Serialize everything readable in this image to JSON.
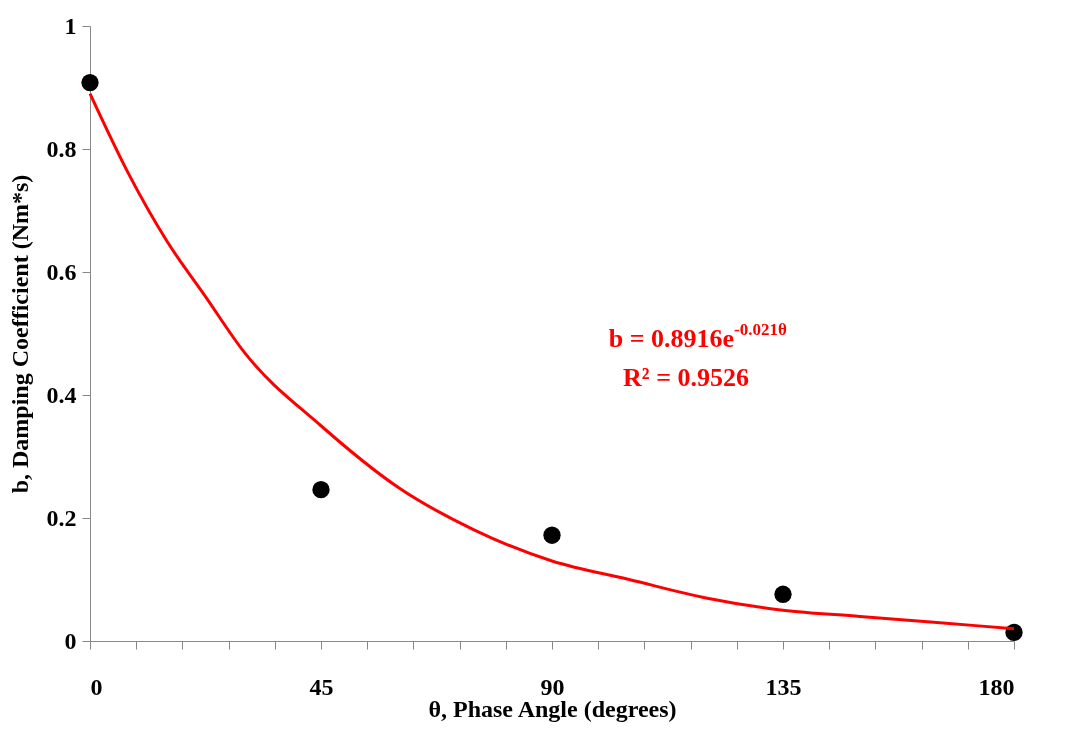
{
  "chart_data": {
    "type": "scatter",
    "xlabel": "θ, Phase Angle (degrees)",
    "ylabel": "b, Damping Coefficient (Nm*s)",
    "x": [
      0,
      45,
      90,
      135,
      180
    ],
    "series": [
      {
        "type": "scatter",
        "color": "#000000",
        "marker": "circle",
        "values": [
          0.908,
          0.246,
          0.172,
          0.076,
          0.014
        ]
      },
      {
        "type": "line",
        "color": "#ff0000",
        "line_style": "solid",
        "marker": "none",
        "x": [
          0,
          7.5,
          15,
          22.5,
          30,
          45,
          60,
          75,
          90,
          105,
          120,
          135,
          150,
          165,
          180
        ],
        "values": [
          0.89,
          0.76,
          0.65,
          0.56,
          0.47,
          0.35,
          0.25,
          0.18,
          0.13,
          0.1,
          0.07,
          0.05,
          0.04,
          0.03,
          0.02
        ]
      }
    ],
    "xlim": [
      0,
      180
    ],
    "xticks": [
      0,
      {
        "value": 9,
        "label": null
      },
      {
        "value": 18,
        "label": null
      },
      {
        "value": 27,
        "label": null
      },
      {
        "value": 36,
        "label": null
      },
      45,
      {
        "value": 54,
        "label": null
      },
      {
        "value": 63,
        "label": null
      },
      {
        "value": 72,
        "label": null
      },
      {
        "value": 81,
        "label": null
      },
      90,
      {
        "value": 99,
        "label": null
      },
      {
        "value": 108,
        "label": null
      },
      {
        "value": 117,
        "label": null
      },
      {
        "value": 126,
        "label": null
      },
      135,
      {
        "value": 144,
        "label": null
      },
      {
        "value": 153,
        "label": null
      },
      {
        "value": 162,
        "label": null
      },
      {
        "value": 171,
        "label": null
      },
      180
    ],
    "ylim": [
      0,
      1
    ],
    "yticks": [
      0,
      0.2,
      0.4,
      0.6,
      0.8,
      1
    ],
    "grid": false,
    "annotations": [
      "b = 0.8916e$^{-0.021θ}$",
      "R² = 0.9526"
    ]
  }
}
